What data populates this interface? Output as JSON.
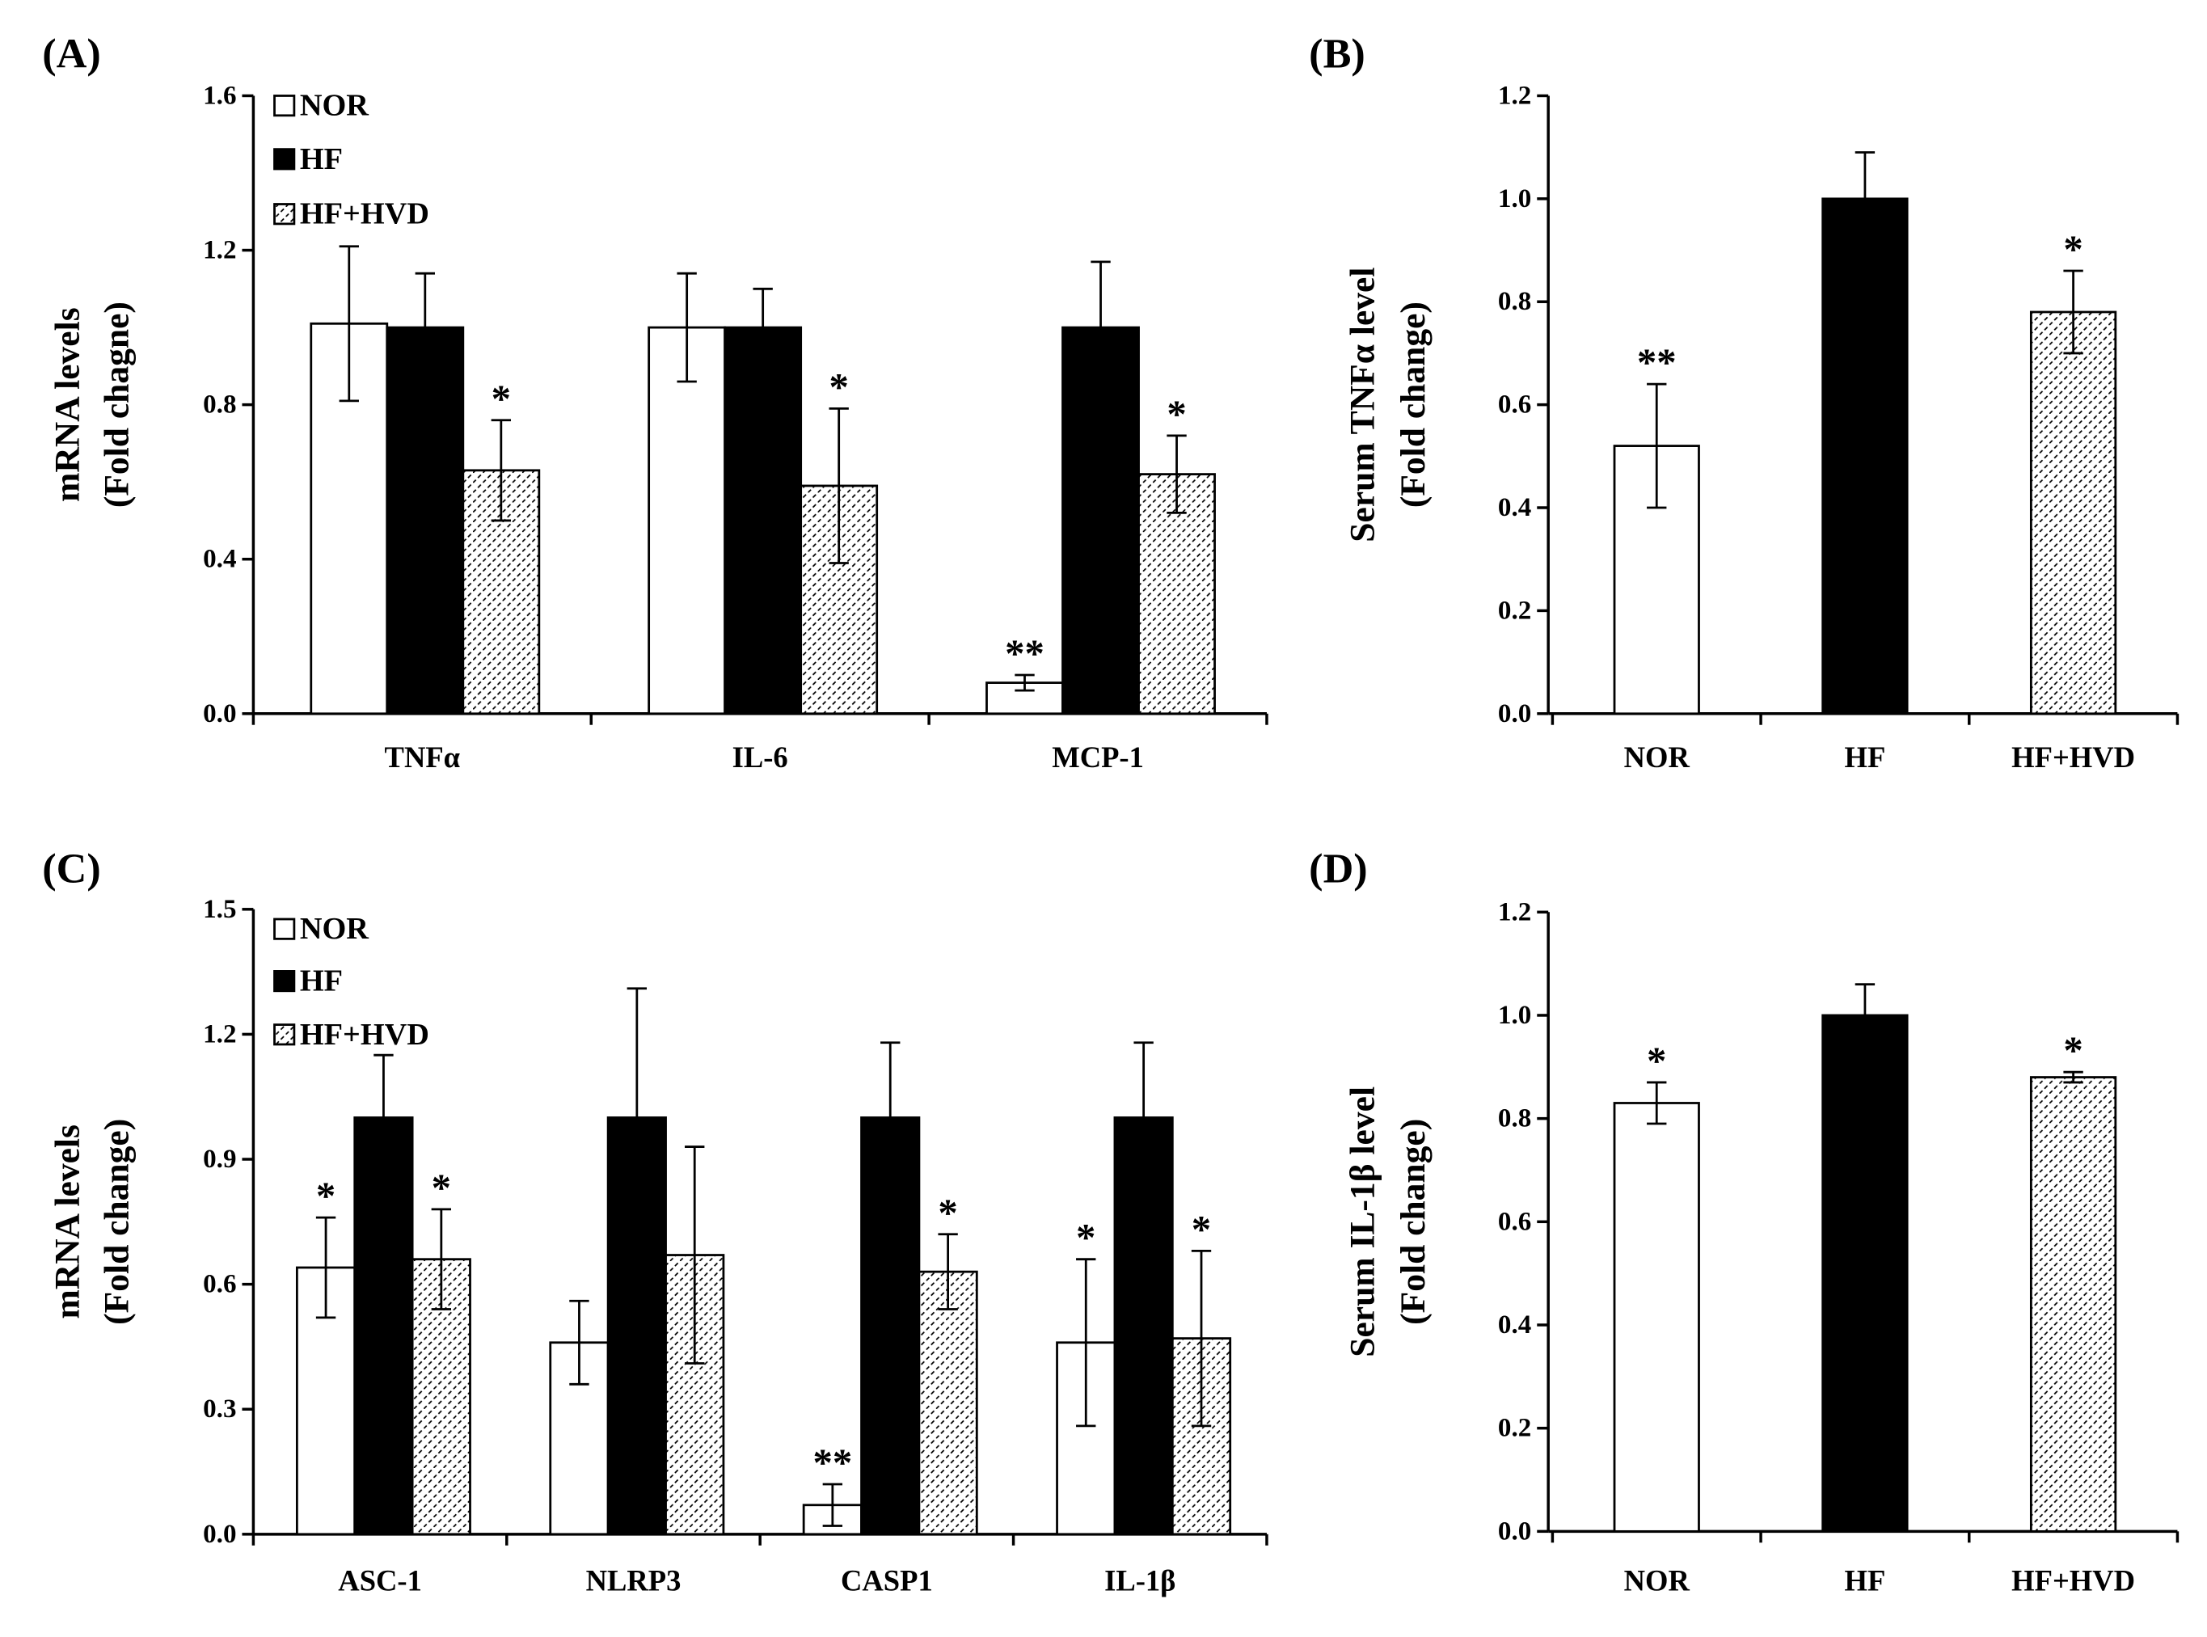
{
  "colors": {
    "nor_fill": "#ffffff",
    "hf_fill": "#000000",
    "hatch_line": "#000000",
    "axis": "#000000"
  },
  "chart_data": [
    {
      "panel": "(A)",
      "type": "bar",
      "ylabel": [
        "mRNA levels",
        "(Fold chagne)"
      ],
      "ylim": [
        0,
        1.6
      ],
      "yticks": [
        "0.0",
        "0.4",
        "0.8",
        "1.2",
        "1.6"
      ],
      "categories": [
        "TNFα",
        "IL-6",
        "MCP-1"
      ],
      "legend": [
        "NOR",
        "HF",
        "HF+HVD"
      ],
      "series": [
        {
          "name": "NOR",
          "style": "open",
          "values": [
            1.01,
            1.0,
            0.08
          ],
          "errors": [
            0.2,
            0.14,
            0.02
          ],
          "marks": [
            "",
            "",
            "**"
          ]
        },
        {
          "name": "HF",
          "style": "solid",
          "values": [
            1.0,
            1.0,
            1.0
          ],
          "errors": [
            0.14,
            0.1,
            0.17
          ],
          "marks": [
            "",
            "",
            ""
          ]
        },
        {
          "name": "HF+HVD",
          "style": "hatched",
          "values": [
            0.63,
            0.59,
            0.62
          ],
          "errors": [
            0.13,
            0.2,
            0.1
          ],
          "marks": [
            "*",
            "*",
            "*"
          ]
        }
      ]
    },
    {
      "panel": "(B)",
      "type": "bar",
      "ylabel": [
        "Serum TNFα level",
        "(Fold change)"
      ],
      "ylim": [
        0,
        1.2
      ],
      "yticks": [
        "0.0",
        "0.2",
        "0.4",
        "0.6",
        "0.8",
        "1.0",
        "1.2"
      ],
      "categories": [
        "NOR",
        "HF",
        "HF+HVD"
      ],
      "bar_styles": [
        "open",
        "solid",
        "hatched"
      ],
      "values": [
        0.52,
        1.0,
        0.78
      ],
      "errors": [
        0.12,
        0.09,
        0.08
      ],
      "marks": [
        "**",
        "",
        "*"
      ]
    },
    {
      "panel": "(C)",
      "type": "bar",
      "ylabel": [
        "mRNA levels",
        "(Fold change)"
      ],
      "ylim": [
        0,
        1.5
      ],
      "yticks": [
        "0.0",
        "0.3",
        "0.6",
        "0.9",
        "1.2",
        "1.5"
      ],
      "categories": [
        "ASC-1",
        "NLRP3",
        "CASP1",
        "IL-1β"
      ],
      "legend": [
        "NOR",
        "HF",
        "HF+HVD"
      ],
      "series": [
        {
          "name": "NOR",
          "style": "open",
          "values": [
            0.64,
            0.46,
            0.07,
            0.46
          ],
          "errors": [
            0.12,
            0.1,
            0.05,
            0.2
          ],
          "marks": [
            "*",
            "",
            "**",
            "*"
          ]
        },
        {
          "name": "HF",
          "style": "solid",
          "values": [
            1.0,
            1.0,
            1.0,
            1.0
          ],
          "errors": [
            0.15,
            0.31,
            0.18,
            0.18
          ],
          "marks": [
            "",
            "",
            "",
            ""
          ]
        },
        {
          "name": "HF+HVD",
          "style": "hatched",
          "values": [
            0.66,
            0.67,
            0.63,
            0.47
          ],
          "errors": [
            0.12,
            0.26,
            0.09,
            0.21
          ],
          "marks": [
            "*",
            "",
            "*",
            "*"
          ]
        }
      ]
    },
    {
      "panel": "(D)",
      "type": "bar",
      "ylabel": [
        "Serum IL-1β level",
        "(Fold change)"
      ],
      "ylim": [
        0,
        1.2
      ],
      "yticks": [
        "0.0",
        "0.2",
        "0.4",
        "0.6",
        "0.8",
        "1.0",
        "1.2"
      ],
      "categories": [
        "NOR",
        "HF",
        "HF+HVD"
      ],
      "bar_styles": [
        "open",
        "solid",
        "hatched"
      ],
      "values": [
        0.83,
        1.0,
        0.88
      ],
      "errors": [
        0.04,
        0.06,
        0.01
      ],
      "marks": [
        "*",
        "",
        "*"
      ]
    }
  ]
}
